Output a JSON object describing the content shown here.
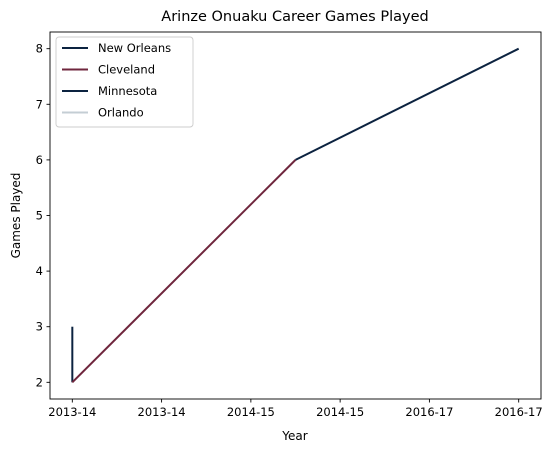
{
  "chart_data": {
    "type": "line",
    "title": "Arinze Onuaku Career Games Played",
    "xlabel": "Year",
    "ylabel": "Games Played",
    "x_ticks": [
      "2013-14",
      "2013-14",
      "2014-15",
      "2014-15",
      "2016-17",
      "2016-17"
    ],
    "y_ticks": [
      2,
      3,
      4,
      5,
      6,
      7,
      8
    ],
    "xlim": [
      -0.1,
      2.1
    ],
    "ylim": [
      1.7,
      8.3
    ],
    "grid": false,
    "legend_position": "upper-left",
    "series": [
      {
        "name": "New Orleans",
        "color": "#0C2340",
        "points": [
          [
            0,
            3
          ],
          [
            0,
            2
          ]
        ]
      },
      {
        "name": "Cleveland",
        "color": "#6F263D",
        "points": [
          [
            0,
            2
          ],
          [
            1,
            6
          ]
        ]
      },
      {
        "name": "Minnesota",
        "color": "#0C2340",
        "points": [
          [
            1,
            6
          ],
          [
            2,
            8
          ]
        ]
      },
      {
        "name": "Orlando",
        "color": "#C4CED4",
        "points": []
      }
    ]
  }
}
